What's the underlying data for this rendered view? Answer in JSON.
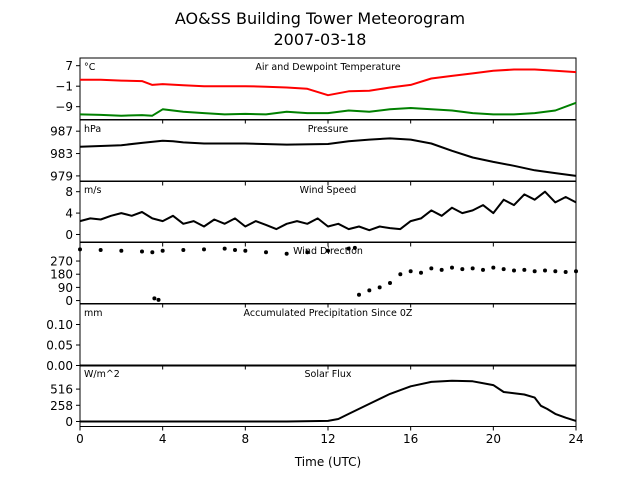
{
  "figure": {
    "title_line1": "AO&SS Building Tower Meteorogram",
    "title_line2": "2007-03-18",
    "xlabel": "Time (UTC)",
    "x_ticks": [
      "0",
      "4",
      "8",
      "12",
      "16",
      "20",
      "24"
    ]
  },
  "chart_data": [
    {
      "type": "line",
      "title": "Air and Dewpoint Temperature",
      "unit": "°C",
      "xlim": [
        0,
        24
      ],
      "ylim": [
        -14,
        10
      ],
      "y_ticks": [
        7,
        -1,
        -9
      ],
      "y_tick_labels": [
        "7",
        "−1",
        "−9"
      ],
      "series": [
        {
          "color": "#ff0000",
          "x": [
            0,
            1,
            2,
            3,
            3.5,
            4,
            5,
            6,
            7,
            8,
            9,
            10,
            11,
            12,
            13,
            14,
            15,
            16,
            17,
            18,
            19,
            20,
            21,
            22,
            23,
            24
          ],
          "values": [
            1.5,
            1.5,
            1.2,
            1.0,
            -0.5,
            -0.2,
            -0.6,
            -1.0,
            -1.0,
            -1.0,
            -1.2,
            -1.5,
            -2.0,
            -4.5,
            -3.0,
            -2.8,
            -1.5,
            -0.5,
            2.0,
            3.0,
            4.0,
            5.0,
            5.5,
            5.5,
            5.0,
            4.5
          ]
        },
        {
          "color": "#008000",
          "x": [
            0,
            1,
            2,
            3,
            3.5,
            4,
            5,
            6,
            7,
            8,
            9,
            10,
            11,
            12,
            13,
            14,
            15,
            16,
            17,
            18,
            19,
            20,
            21,
            22,
            23,
            24
          ],
          "values": [
            -12.0,
            -12.2,
            -12.5,
            -12.3,
            -12.5,
            -10.0,
            -11.0,
            -11.5,
            -12.0,
            -11.8,
            -12.0,
            -11.0,
            -11.5,
            -11.5,
            -10.5,
            -11.0,
            -10.0,
            -9.5,
            -10.0,
            -10.5,
            -11.5,
            -12.0,
            -12.0,
            -11.5,
            -10.5,
            -7.5
          ]
        }
      ]
    },
    {
      "type": "line",
      "title": "Pressure",
      "unit": "hPa",
      "xlim": [
        0,
        24
      ],
      "ylim": [
        978,
        989
      ],
      "y_ticks": [
        987,
        983,
        979
      ],
      "series": [
        {
          "color": "#000000",
          "x": [
            0,
            2,
            3,
            4,
            4.5,
            5,
            6,
            8,
            10,
            12,
            13,
            14,
            15,
            16,
            17,
            18,
            19,
            20,
            21,
            22,
            23,
            24
          ],
          "values": [
            984.2,
            984.5,
            984.9,
            985.3,
            985.2,
            985.0,
            984.8,
            984.8,
            984.6,
            984.7,
            985.2,
            985.5,
            985.7,
            985.5,
            984.8,
            983.5,
            982.3,
            981.5,
            980.8,
            980.0,
            979.5,
            979.0
          ]
        }
      ]
    },
    {
      "type": "line",
      "title": "Wind Speed",
      "unit": "m/s",
      "xlim": [
        0,
        24
      ],
      "ylim": [
        -1.5,
        10
      ],
      "y_ticks": [
        8,
        4,
        0
      ],
      "series": [
        {
          "color": "#000000",
          "x": [
            0,
            0.5,
            1,
            1.5,
            2,
            2.5,
            3,
            3.5,
            4,
            4.5,
            5,
            5.5,
            6,
            6.5,
            7,
            7.5,
            8,
            8.5,
            9,
            9.5,
            10,
            10.5,
            11,
            11.5,
            12,
            12.5,
            13,
            13.5,
            14,
            14.5,
            15,
            15.5,
            16,
            16.5,
            17,
            17.5,
            18,
            18.5,
            19,
            19.5,
            20,
            20.5,
            21,
            21.5,
            22,
            22.5,
            23,
            23.5,
            24
          ],
          "values": [
            2.5,
            3.0,
            2.8,
            3.5,
            4.0,
            3.5,
            4.2,
            3.0,
            2.5,
            3.5,
            2.0,
            2.5,
            1.5,
            2.8,
            2.0,
            3.0,
            1.5,
            2.5,
            1.8,
            1.0,
            2.0,
            2.5,
            2.0,
            3.0,
            1.5,
            2.0,
            1.0,
            1.5,
            0.8,
            1.5,
            1.2,
            1.0,
            2.5,
            3.0,
            4.5,
            3.5,
            5.0,
            4.0,
            4.5,
            5.5,
            4.0,
            6.5,
            5.5,
            7.5,
            6.5,
            8.0,
            6.0,
            7.0,
            6.0
          ]
        }
      ]
    },
    {
      "type": "scatter",
      "title": "Wind Direction",
      "xlim": [
        0,
        24
      ],
      "ylim": [
        -20,
        400
      ],
      "y_ticks": [
        270,
        180,
        90,
        0
      ],
      "series": [
        {
          "color": "#000000",
          "x": [
            0,
            1,
            2,
            3,
            3.5,
            4,
            5,
            6,
            7,
            7.5,
            8,
            9,
            10,
            11,
            12,
            13,
            13.3
          ],
          "values": [
            350,
            345,
            340,
            335,
            330,
            340,
            345,
            350,
            355,
            345,
            340,
            330,
            320,
            330,
            340,
            355,
            360
          ]
        },
        {
          "color": "#000000",
          "x": [
            3.6,
            3.8
          ],
          "values": [
            15,
            5
          ]
        },
        {
          "color": "#000000",
          "x": [
            13.5,
            14,
            14.5,
            15,
            15.5,
            16,
            16.5,
            17,
            17.5,
            18,
            18.5,
            19,
            19.5,
            20,
            20.5,
            21,
            21.5,
            22,
            22.5,
            23,
            23.5,
            24
          ],
          "values": [
            40,
            70,
            90,
            120,
            180,
            200,
            190,
            220,
            210,
            225,
            215,
            220,
            210,
            225,
            215,
            205,
            210,
            200,
            205,
            200,
            195,
            200
          ]
        }
      ]
    },
    {
      "type": "line",
      "title": "Accumulated Precipitation Since 0Z",
      "unit": "mm",
      "xlim": [
        0,
        24
      ],
      "ylim": [
        0,
        0.15
      ],
      "y_ticks": [
        0.1,
        0.05,
        0.0
      ],
      "y_tick_labels": [
        "0.10",
        "0.05",
        "0.00"
      ],
      "series": [
        {
          "color": "#000000",
          "x": [
            0,
            24
          ],
          "values": [
            0,
            0
          ]
        }
      ]
    },
    {
      "type": "line",
      "title": "Solar Flux",
      "unit": "W/m^2",
      "xlim": [
        0,
        24
      ],
      "ylim": [
        -80,
        900
      ],
      "y_ticks": [
        516,
        258,
        0
      ],
      "series": [
        {
          "color": "#000000",
          "x": [
            0,
            10,
            12,
            12.5,
            13,
            14,
            15,
            16,
            17,
            18,
            19,
            20,
            20.5,
            21,
            21.5,
            22,
            22.3,
            22.6,
            23,
            23.5,
            24
          ],
          "values": [
            0,
            0,
            10,
            40,
            120,
            280,
            440,
            560,
            630,
            650,
            640,
            580,
            470,
            450,
            430,
            380,
            250,
            200,
            120,
            60,
            10
          ]
        }
      ]
    }
  ]
}
